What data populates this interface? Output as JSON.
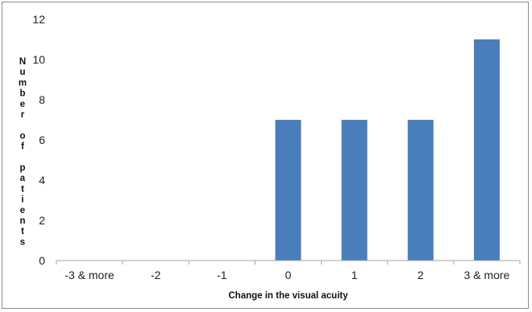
{
  "chart_data": {
    "type": "bar",
    "title": "",
    "xlabel": "Change in the visual acuity",
    "ylabel": "Number of patients",
    "categories": [
      "-3 & more",
      "-2",
      "-1",
      "0",
      "1",
      "2",
      "3 & more"
    ],
    "series": [
      {
        "values": [
          0,
          0,
          0,
          7,
          7,
          7,
          11
        ]
      }
    ],
    "ylim": [
      0,
      12
    ],
    "yticks": [
      0,
      2,
      4,
      6,
      8,
      10,
      12
    ],
    "grid": false,
    "legend": "none",
    "bar_color": "#4a7ebb"
  }
}
